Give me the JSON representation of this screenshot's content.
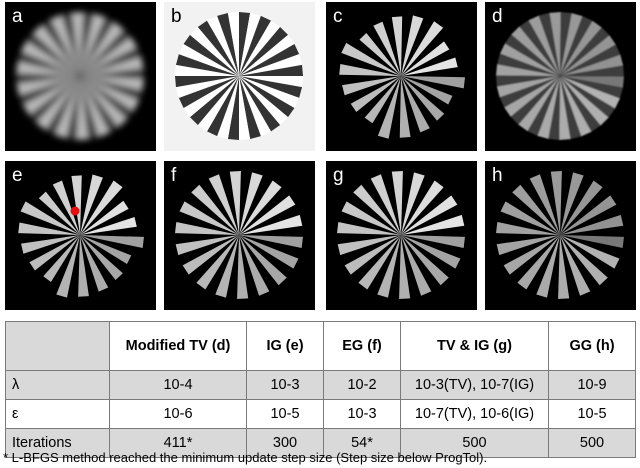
{
  "panels": [
    {
      "label": "a"
    },
    {
      "label": "b"
    },
    {
      "label": "c"
    },
    {
      "label": "d"
    },
    {
      "label": "e"
    },
    {
      "label": "f"
    },
    {
      "label": "g"
    },
    {
      "label": "h"
    }
  ],
  "table": {
    "headers": [
      "",
      "Modified TV (d)",
      "IG (e)",
      "EG (f)",
      "TV & IG (g)",
      "GG (h)"
    ],
    "rows": [
      {
        "name": "λ",
        "cells": [
          "10-4",
          "10-3",
          "10-2",
          "10-3(TV), 10-7(IG)",
          "10-9"
        ]
      },
      {
        "name": "ε",
        "cells": [
          "10-6",
          "10-5",
          "10-3",
          "10-7(TV), 10-6(IG)",
          "10-5"
        ]
      },
      {
        "name": "Iterations",
        "cells": [
          "411*",
          "300",
          "54*",
          "500",
          "500"
        ]
      }
    ]
  },
  "footnote": "* L-BFGS method reached the minimum update step size (Step size below ProgTol)."
}
